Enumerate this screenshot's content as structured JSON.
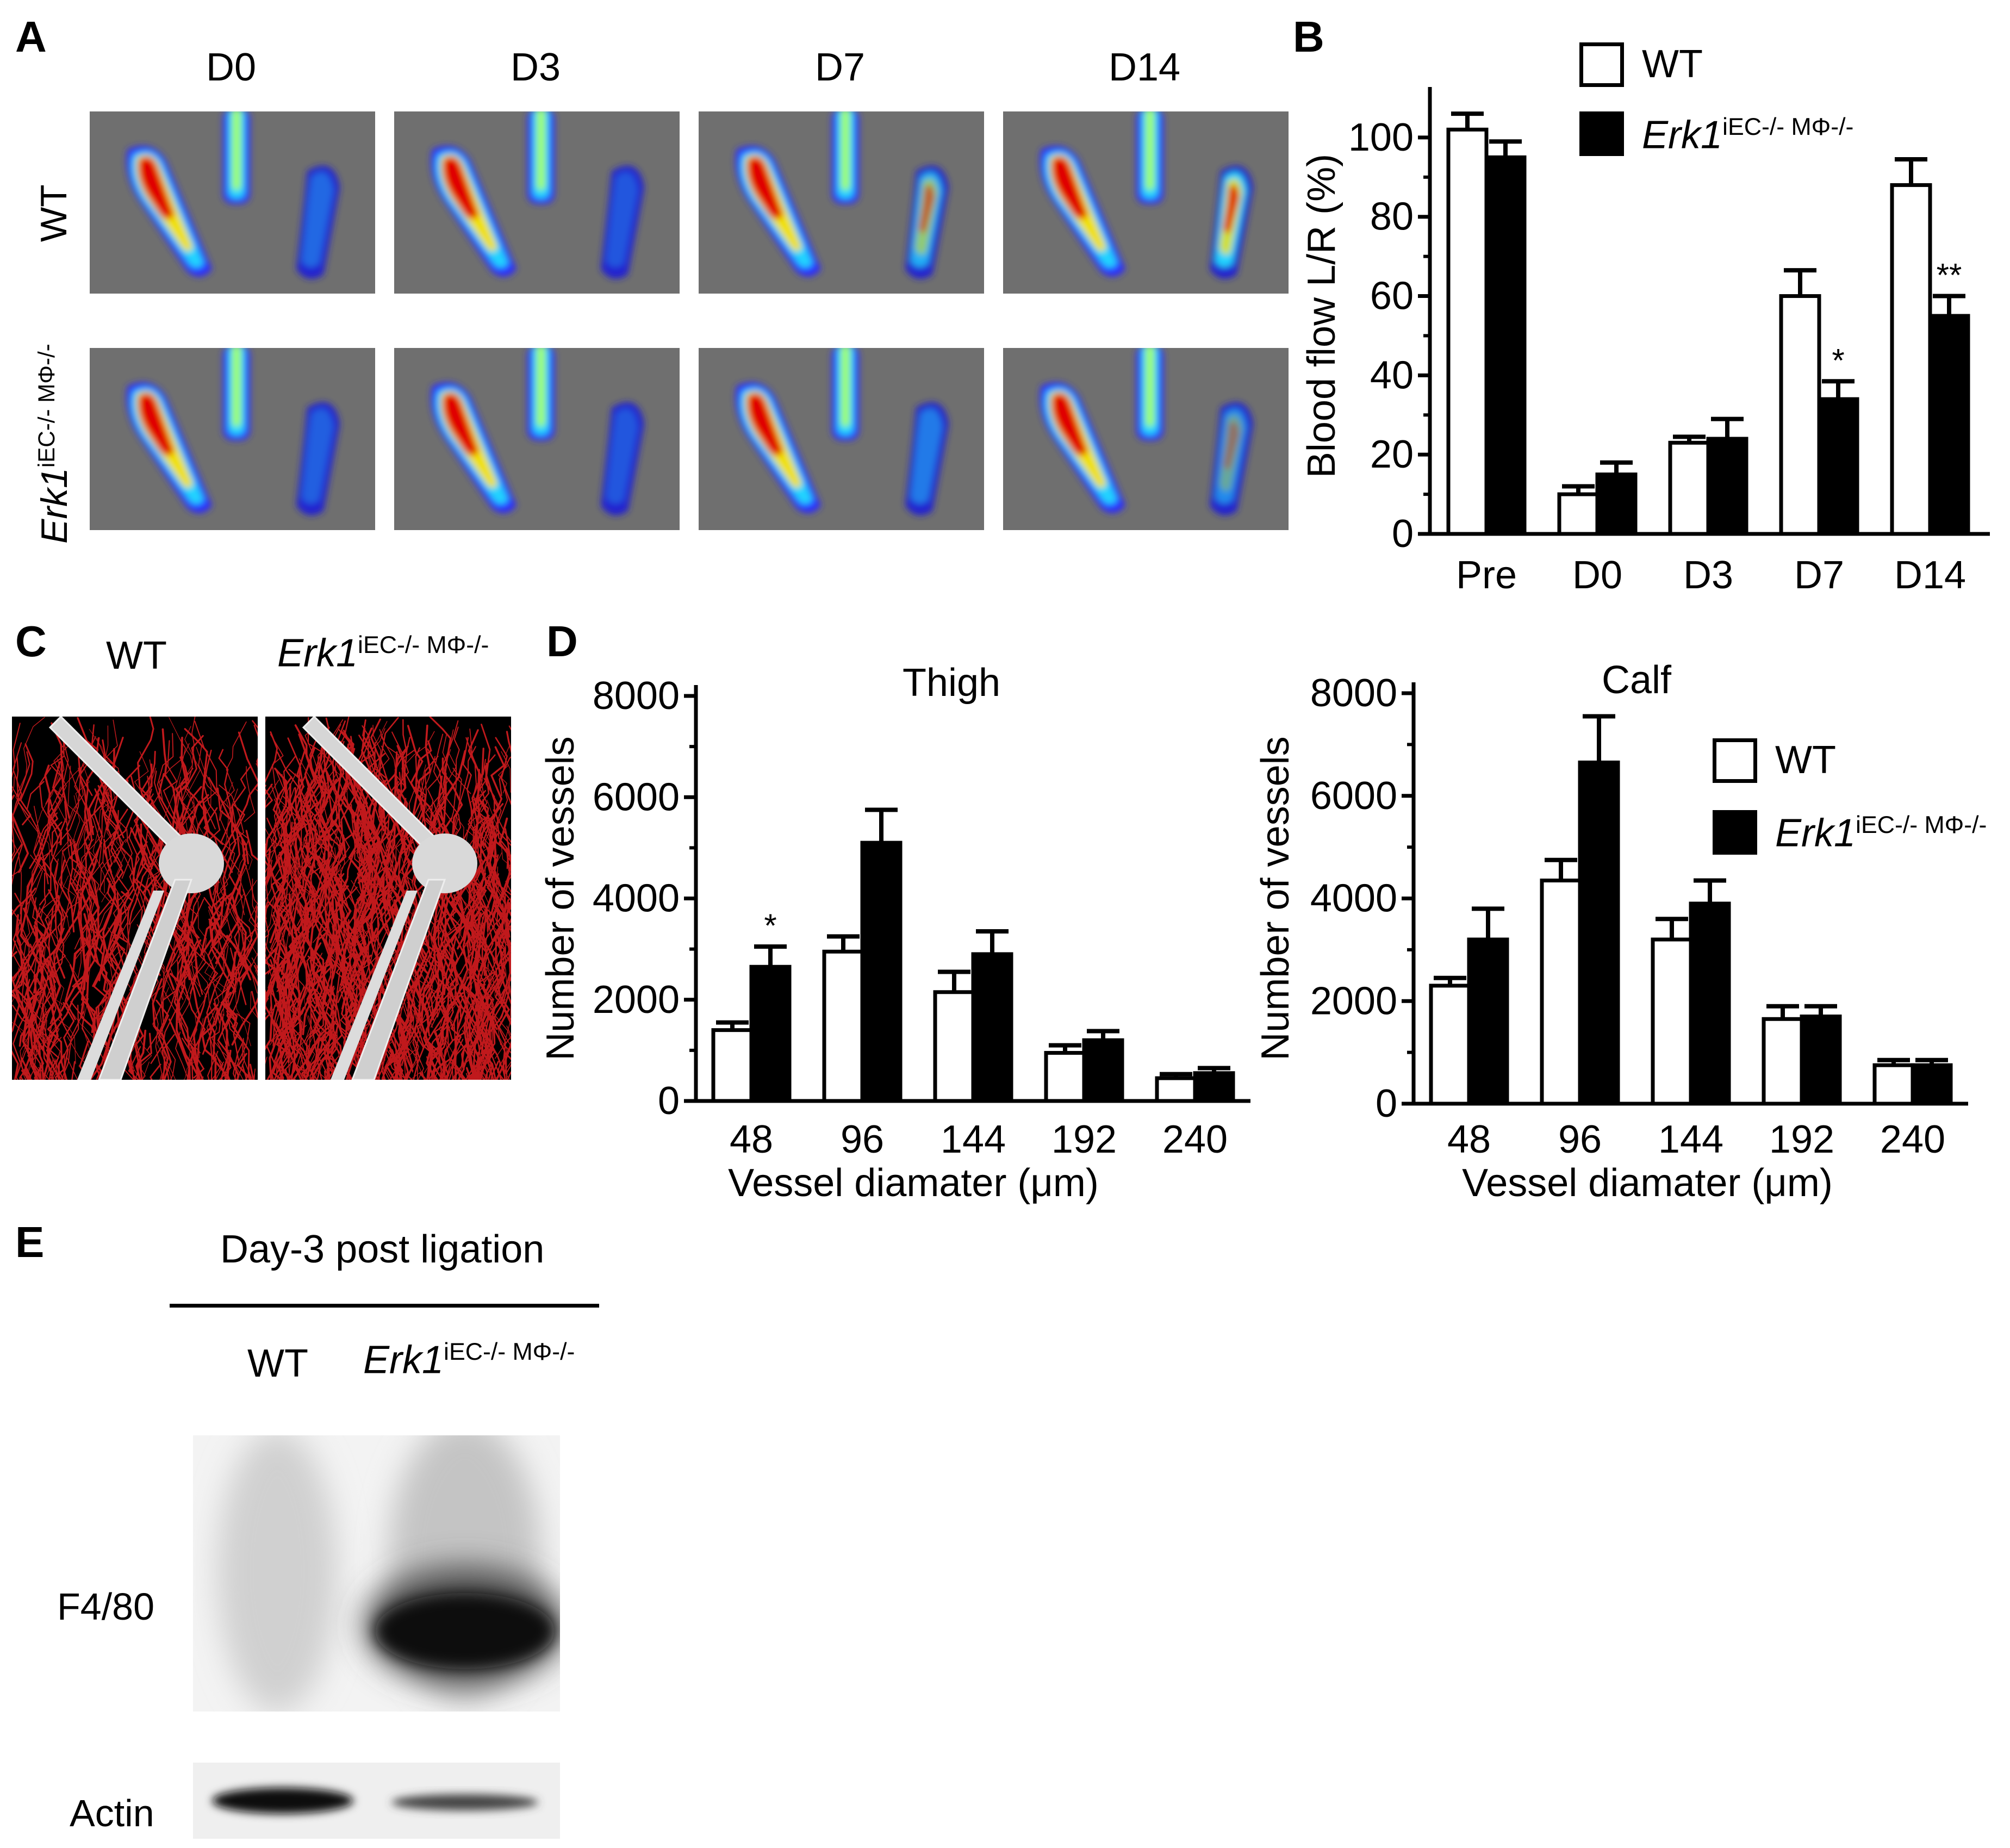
{
  "panel_labels": {
    "a": "A",
    "b": "B",
    "c": "C",
    "d": "D",
    "e": "E"
  },
  "genotypes": {
    "wt": "WT",
    "ko_main": "Erk1",
    "ko_sup": "iEC-/- MΦ-/-"
  },
  "panel_a": {
    "columns": [
      "D0",
      "D3",
      "D7",
      "D14"
    ],
    "rows": [
      "WT",
      "Erk1iEC-/- MΦ-/-"
    ]
  },
  "panel_b": {
    "legend": [
      "WT",
      "Erk1iEC-/- MΦ-/-"
    ],
    "ylabel": "Blood flow L/R (%)",
    "significance": [
      "*",
      "**"
    ]
  },
  "panel_c": {
    "labels": [
      "WT",
      "Erk1iEC-/- MΦ-/-"
    ]
  },
  "panel_d": {
    "xlabel": "Vessel diamater (μm)",
    "ylabel": "Number of vessels",
    "legend": [
      "WT",
      "Erk1iEC-/- MΦ-/-"
    ],
    "significance": [
      "*"
    ]
  },
  "panel_e": {
    "title": "Day-3 post ligation",
    "lanes": [
      "WT",
      "Erk1iEC-/- MΦ-/-"
    ],
    "bands": [
      "F4/80",
      "Actin"
    ]
  },
  "chart_data": [
    {
      "id": "B",
      "type": "bar",
      "categories": [
        "Pre",
        "D0",
        "D3",
        "D7",
        "D14"
      ],
      "series": [
        {
          "name": "WT",
          "values": [
            102,
            10,
            23,
            60,
            88
          ],
          "errors": [
            4,
            2,
            1.5,
            6.5,
            6.5
          ],
          "color": "#ffffff"
        },
        {
          "name": "Erk1iEC-/- MΦ-/-",
          "values": [
            95,
            15,
            24,
            34,
            55
          ],
          "errors": [
            4,
            3,
            5,
            4.5,
            5
          ],
          "color": "#000000"
        }
      ],
      "annotations": [
        {
          "category": "D7",
          "series": 1,
          "text": "*"
        },
        {
          "category": "D14",
          "series": 1,
          "text": "**"
        }
      ],
      "ylabel": "Blood flow L/R (%)",
      "ylim": [
        0,
        110
      ],
      "yticks": [
        0,
        20,
        40,
        60,
        80,
        100
      ],
      "legend_position": "top-right"
    },
    {
      "id": "D-thigh",
      "type": "bar",
      "title": "Thigh",
      "categories": [
        "48",
        "96",
        "144",
        "192",
        "240"
      ],
      "series": [
        {
          "name": "WT",
          "values": [
            1400,
            2950,
            2150,
            950,
            450
          ],
          "errors": [
            150,
            300,
            400,
            150,
            80
          ],
          "color": "#ffffff"
        },
        {
          "name": "Erk1iEC-/- MΦ-/-",
          "values": [
            2650,
            5100,
            2900,
            1200,
            550
          ],
          "errors": [
            400,
            650,
            450,
            180,
            100
          ],
          "color": "#000000"
        }
      ],
      "annotations": [
        {
          "category": "48",
          "series": 1,
          "text": "*"
        }
      ],
      "xlabel": "Vessel diamater (μm)",
      "ylabel": "Number of vessels",
      "ylim": [
        0,
        8000
      ],
      "yticks": [
        0,
        2000,
        4000,
        6000,
        8000
      ]
    },
    {
      "id": "D-calf",
      "type": "bar",
      "title": "Calf",
      "categories": [
        "48",
        "96",
        "144",
        "192",
        "240"
      ],
      "series": [
        {
          "name": "WT",
          "values": [
            2300,
            4350,
            3200,
            1650,
            750
          ],
          "errors": [
            150,
            400,
            400,
            250,
            100
          ],
          "color": "#ffffff"
        },
        {
          "name": "Erk1iEC-/- MΦ-/-",
          "values": [
            3200,
            6650,
            3900,
            1700,
            750
          ],
          "errors": [
            600,
            900,
            450,
            200,
            100
          ],
          "color": "#000000"
        }
      ],
      "xlabel": "Vessel diamater (μm)",
      "ylabel": "Number of vessels",
      "ylim": [
        0,
        8000
      ],
      "yticks": [
        0,
        2000,
        4000,
        6000,
        8000
      ],
      "legend_position": "top-right"
    }
  ]
}
